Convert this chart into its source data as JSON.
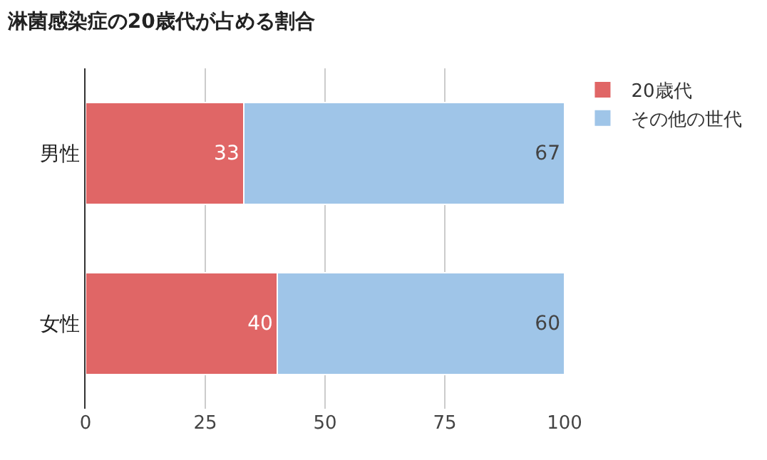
{
  "chart_data": {
    "type": "bar",
    "title": "淋菌感染症の20歳代が占める割合",
    "orientation": "horizontal",
    "stacked": true,
    "categories": [
      "男性",
      "女性"
    ],
    "series": [
      {
        "name": "20歳代",
        "color": "#e06666",
        "values": [
          33,
          40
        ]
      },
      {
        "name": "その他の世代",
        "color": "#9fc5e8",
        "values": [
          67,
          60
        ]
      }
    ],
    "xlim": [
      0,
      100
    ],
    "xticks": [
      0,
      25,
      50,
      75,
      100
    ],
    "grid": "x",
    "legend": "top right",
    "data_labels": true
  }
}
